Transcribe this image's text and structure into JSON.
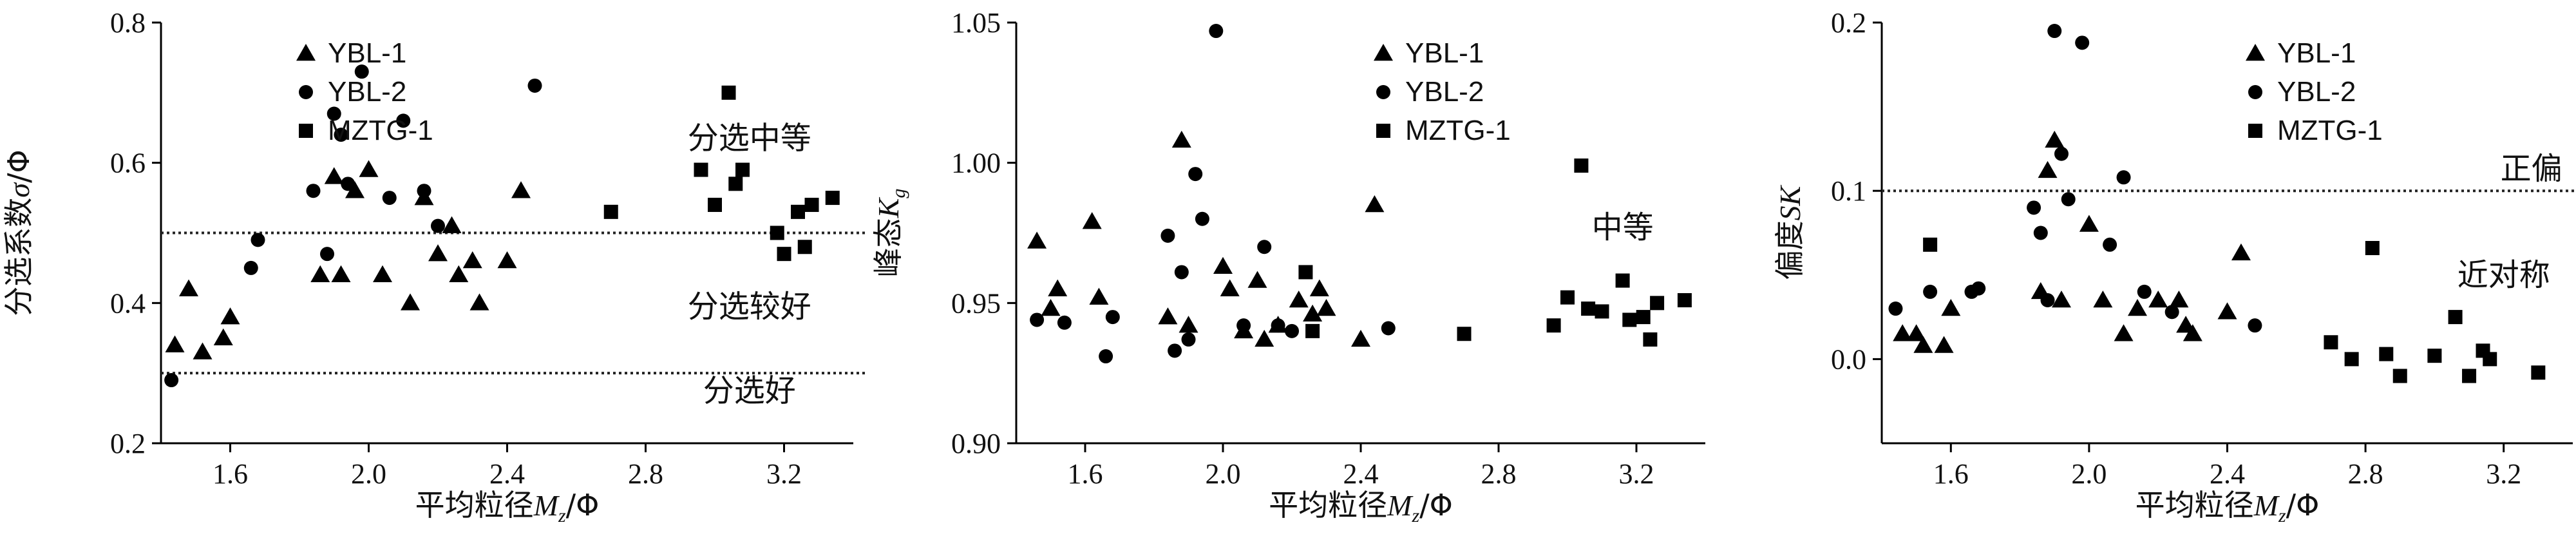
{
  "chart_data": [
    {
      "type": "scatter",
      "xlabel": "平均粒径M_z/Φ",
      "ylabel": "分选系数σ/Φ",
      "xlim": [
        1.4,
        3.4
      ],
      "ylim": [
        0.2,
        0.8
      ],
      "x_ticks": [
        "1.6",
        "2.0",
        "2.4",
        "2.8",
        "3.2"
      ],
      "x_tick_values": [
        1.6,
        2.0,
        2.4,
        2.8,
        3.2
      ],
      "y_ticks": [
        "0.2",
        "0.4",
        "0.6",
        "0.8"
      ],
      "y_tick_values": [
        0.2,
        0.4,
        0.6,
        0.8
      ],
      "legend_position": "top-left",
      "reference_lines": [
        {
          "y": 0.5,
          "style": "dotted"
        },
        {
          "y": 0.3,
          "style": "dotted"
        }
      ],
      "annotations": [
        {
          "text": "分选中等",
          "x": 3.1,
          "y": 0.635
        },
        {
          "text": "分选较好",
          "x": 3.1,
          "y": 0.395
        },
        {
          "text": "分选好",
          "x": 3.1,
          "y": 0.275
        }
      ],
      "series": [
        {
          "name": "YBL-1",
          "marker": "triangle",
          "points": [
            [
              1.44,
              0.34
            ],
            [
              1.48,
              0.42
            ],
            [
              1.52,
              0.33
            ],
            [
              1.58,
              0.35
            ],
            [
              1.6,
              0.38
            ],
            [
              1.86,
              0.44
            ],
            [
              1.9,
              0.58
            ],
            [
              1.92,
              0.44
            ],
            [
              1.96,
              0.56
            ],
            [
              2.0,
              0.59
            ],
            [
              2.04,
              0.44
            ],
            [
              2.12,
              0.4
            ],
            [
              2.16,
              0.55
            ],
            [
              2.2,
              0.47
            ],
            [
              2.24,
              0.51
            ],
            [
              2.26,
              0.44
            ],
            [
              2.3,
              0.46
            ],
            [
              2.32,
              0.4
            ],
            [
              2.4,
              0.46
            ],
            [
              2.44,
              0.56
            ]
          ]
        },
        {
          "name": "YBL-2",
          "marker": "circle",
          "points": [
            [
              1.43,
              0.29
            ],
            [
              1.66,
              0.45
            ],
            [
              1.68,
              0.49
            ],
            [
              1.84,
              0.56
            ],
            [
              1.88,
              0.47
            ],
            [
              1.9,
              0.67
            ],
            [
              1.92,
              0.64
            ],
            [
              1.94,
              0.57
            ],
            [
              1.98,
              0.73
            ],
            [
              2.06,
              0.55
            ],
            [
              2.1,
              0.66
            ],
            [
              2.16,
              0.56
            ],
            [
              2.2,
              0.51
            ],
            [
              2.48,
              0.71
            ]
          ]
        },
        {
          "name": "MZTG-1",
          "marker": "square",
          "points": [
            [
              2.7,
              0.53
            ],
            [
              2.96,
              0.59
            ],
            [
              3.0,
              0.54
            ],
            [
              3.04,
              0.7
            ],
            [
              3.06,
              0.57
            ],
            [
              3.08,
              0.59
            ],
            [
              3.18,
              0.5
            ],
            [
              3.2,
              0.47
            ],
            [
              3.24,
              0.53
            ],
            [
              3.26,
              0.48
            ],
            [
              3.28,
              0.54
            ],
            [
              3.34,
              0.55
            ]
          ]
        }
      ]
    },
    {
      "type": "scatter",
      "xlabel": "平均粒径M_z/Φ",
      "ylabel": "峰态K_g",
      "xlim": [
        1.4,
        3.4
      ],
      "ylim": [
        0.9,
        1.05
      ],
      "x_ticks": [
        "1.6",
        "2.0",
        "2.4",
        "2.8",
        "3.2"
      ],
      "x_tick_values": [
        1.6,
        2.0,
        2.4,
        2.8,
        3.2
      ],
      "y_ticks": [
        "0.90",
        "0.95",
        "1.00",
        "1.05"
      ],
      "y_tick_values": [
        0.9,
        0.95,
        1.0,
        1.05
      ],
      "legend_position": "top-right",
      "reference_lines": [],
      "annotations": [
        {
          "text": "中等",
          "x": 3.16,
          "y": 0.977
        }
      ],
      "series": [
        {
          "name": "YBL-1",
          "marker": "triangle",
          "points": [
            [
              1.46,
              0.972
            ],
            [
              1.5,
              0.948
            ],
            [
              1.52,
              0.955
            ],
            [
              1.62,
              0.979
            ],
            [
              1.64,
              0.952
            ],
            [
              1.84,
              0.945
            ],
            [
              1.88,
              1.008
            ],
            [
              1.9,
              0.942
            ],
            [
              2.0,
              0.963
            ],
            [
              2.02,
              0.955
            ],
            [
              2.06,
              0.94
            ],
            [
              2.1,
              0.958
            ],
            [
              2.12,
              0.937
            ],
            [
              2.16,
              0.942
            ],
            [
              2.22,
              0.951
            ],
            [
              2.26,
              0.946
            ],
            [
              2.28,
              0.955
            ],
            [
              2.3,
              0.948
            ],
            [
              2.4,
              0.937
            ],
            [
              2.44,
              0.985
            ]
          ]
        },
        {
          "name": "YBL-2",
          "marker": "circle",
          "points": [
            [
              1.46,
              0.944
            ],
            [
              1.54,
              0.943
            ],
            [
              1.66,
              0.931
            ],
            [
              1.68,
              0.945
            ],
            [
              1.84,
              0.974
            ],
            [
              1.86,
              0.933
            ],
            [
              1.88,
              0.961
            ],
            [
              1.9,
              0.937
            ],
            [
              1.92,
              0.996
            ],
            [
              1.94,
              0.98
            ],
            [
              1.98,
              1.047
            ],
            [
              2.06,
              0.942
            ],
            [
              2.12,
              0.97
            ],
            [
              2.16,
              0.942
            ],
            [
              2.2,
              0.94
            ],
            [
              2.48,
              0.941
            ]
          ]
        },
        {
          "name": "MZTG-1",
          "marker": "square",
          "points": [
            [
              2.7,
              0.939
            ],
            [
              2.96,
              0.942
            ],
            [
              3.0,
              0.952
            ],
            [
              3.04,
              0.999
            ],
            [
              3.06,
              0.948
            ],
            [
              3.1,
              0.947
            ],
            [
              3.16,
              0.958
            ],
            [
              3.18,
              0.944
            ],
            [
              3.22,
              0.945
            ],
            [
              3.24,
              0.937
            ],
            [
              3.26,
              0.95
            ],
            [
              3.34,
              0.951
            ],
            [
              2.26,
              0.94
            ],
            [
              2.24,
              0.961
            ]
          ]
        }
      ]
    },
    {
      "type": "scatter",
      "xlabel": "平均粒径M_z/Φ",
      "ylabel": "偏度SK",
      "xlim": [
        1.4,
        3.4
      ],
      "ylim": [
        -0.05,
        0.2
      ],
      "x_ticks": [
        "1.6",
        "2.0",
        "2.4",
        "2.8",
        "3.2"
      ],
      "x_tick_values": [
        1.6,
        2.0,
        2.4,
        2.8,
        3.2
      ],
      "y_ticks": [
        "0.0",
        "0.1",
        "0.2"
      ],
      "y_tick_values": [
        0.0,
        0.1,
        0.2
      ],
      "legend_position": "top-right",
      "reference_lines": [
        {
          "y": 0.1,
          "style": "dotted"
        }
      ],
      "annotations": [
        {
          "text": "正偏",
          "x": 3.28,
          "y": 0.113
        },
        {
          "text": "近对称",
          "x": 3.2,
          "y": 0.05
        }
      ],
      "series": [
        {
          "name": "YBL-1",
          "marker": "triangle",
          "points": [
            [
              1.46,
              0.015
            ],
            [
              1.5,
              0.015
            ],
            [
              1.52,
              0.008
            ],
            [
              1.58,
              0.008
            ],
            [
              1.6,
              0.03
            ],
            [
              1.86,
              0.04
            ],
            [
              1.88,
              0.112
            ],
            [
              1.9,
              0.13
            ],
            [
              1.92,
              0.035
            ],
            [
              2.0,
              0.08
            ],
            [
              2.04,
              0.035
            ],
            [
              2.1,
              0.015
            ],
            [
              2.14,
              0.03
            ],
            [
              2.2,
              0.035
            ],
            [
              2.26,
              0.035
            ],
            [
              2.28,
              0.02
            ],
            [
              2.3,
              0.015
            ],
            [
              2.4,
              0.028
            ],
            [
              2.44,
              0.063
            ]
          ]
        },
        {
          "name": "YBL-2",
          "marker": "circle",
          "points": [
            [
              1.44,
              0.03
            ],
            [
              1.54,
              0.04
            ],
            [
              1.66,
              0.04
            ],
            [
              1.68,
              0.042
            ],
            [
              1.84,
              0.09
            ],
            [
              1.86,
              0.075
            ],
            [
              1.88,
              0.035
            ],
            [
              1.9,
              0.195
            ],
            [
              1.92,
              0.122
            ],
            [
              1.94,
              0.095
            ],
            [
              1.98,
              0.188
            ],
            [
              2.06,
              0.068
            ],
            [
              2.1,
              0.108
            ],
            [
              2.16,
              0.04
            ],
            [
              2.24,
              0.028
            ],
            [
              2.48,
              0.02
            ]
          ]
        },
        {
          "name": "MZTG-1",
          "marker": "square",
          "points": [
            [
              1.54,
              0.068
            ],
            [
              2.7,
              0.01
            ],
            [
              2.76,
              0.0
            ],
            [
              2.82,
              0.066
            ],
            [
              2.86,
              0.003
            ],
            [
              2.9,
              -0.01
            ],
            [
              3.0,
              0.002
            ],
            [
              3.06,
              0.025
            ],
            [
              3.1,
              -0.01
            ],
            [
              3.14,
              0.005
            ],
            [
              3.16,
              0.0
            ],
            [
              3.3,
              -0.008
            ]
          ]
        }
      ]
    }
  ]
}
